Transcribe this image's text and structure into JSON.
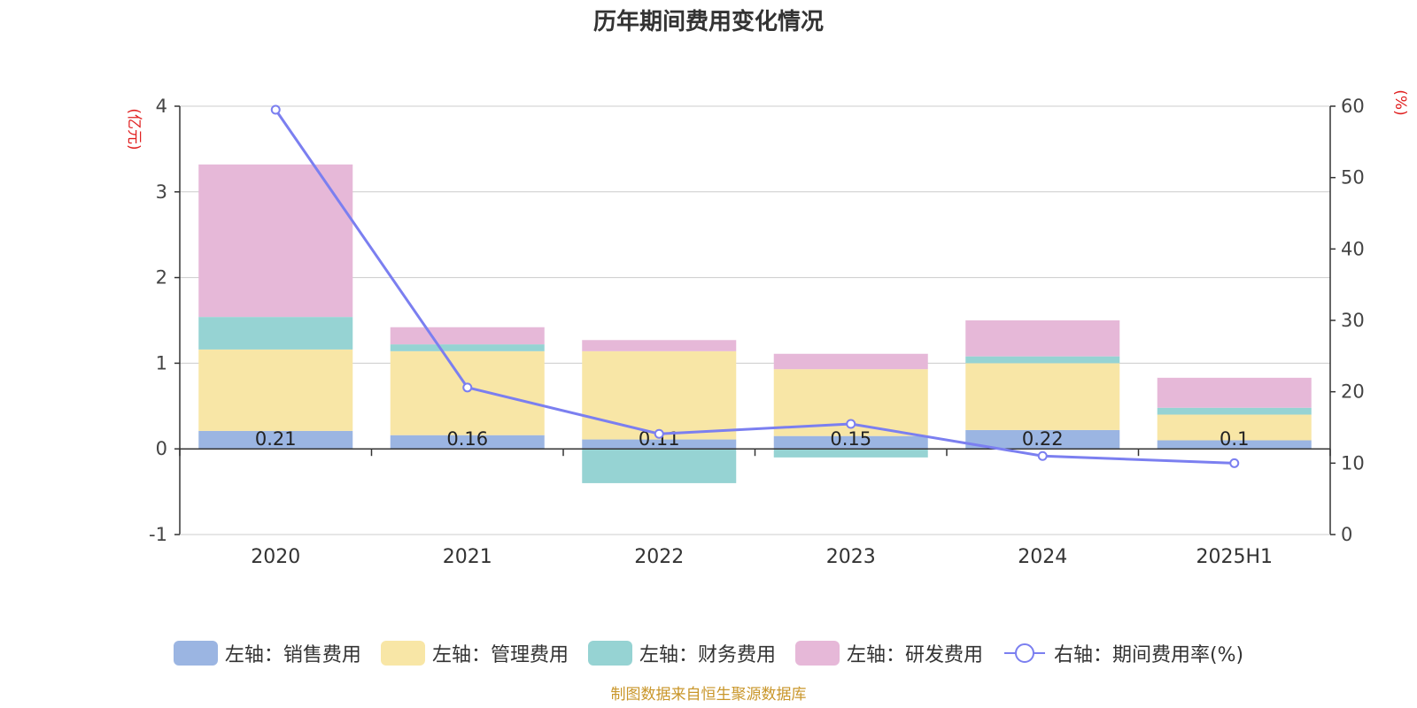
{
  "title": "历年期间费用变化情况",
  "source_note": "制图数据来自恒生聚源数据库",
  "colors": {
    "sales": "#9bb5e2",
    "admin": "#f8e6a6",
    "finance": "#96d3d3",
    "rnd": "#e6b8d8",
    "rate_line": "#7b7ff0"
  },
  "chart_data": {
    "type": "bar",
    "stacked": true,
    "categories": [
      "2020",
      "2021",
      "2022",
      "2023",
      "2024",
      "2025H1"
    ],
    "left_axis": {
      "label": "(亿元)",
      "range": [
        -1,
        4
      ],
      "ticks": [
        "-1",
        "0",
        "1",
        "2",
        "3",
        "4"
      ]
    },
    "right_axis": {
      "label": "(%)",
      "range": [
        0,
        60
      ],
      "ticks": [
        "0",
        "10",
        "20",
        "30",
        "40",
        "50",
        "60"
      ]
    },
    "series": [
      {
        "name": "左轴：销售费用",
        "key": "sales",
        "values": [
          0.21,
          0.16,
          0.11,
          0.15,
          0.22,
          0.1
        ],
        "labels": [
          "0.21",
          "0.16",
          "0.11",
          "0.15",
          "0.22",
          "0.1"
        ]
      },
      {
        "name": "左轴：管理费用",
        "key": "admin",
        "values": [
          0.95,
          0.98,
          1.03,
          0.78,
          0.78,
          0.3
        ]
      },
      {
        "name": "左轴：财务费用",
        "key": "finance",
        "values": [
          0.38,
          0.08,
          -0.4,
          -0.1,
          0.08,
          0.08
        ]
      },
      {
        "name": "左轴：研发费用",
        "key": "rnd",
        "values": [
          1.78,
          0.2,
          0.13,
          0.18,
          0.42,
          0.35
        ]
      },
      {
        "name": "右轴：期间费用率(%)",
        "key": "rate_line",
        "type": "line",
        "axis": "right",
        "values": [
          59.5,
          20.6,
          14.1,
          15.5,
          11.0,
          10.0
        ]
      }
    ],
    "grid": true,
    "legend_position": "bottom"
  }
}
